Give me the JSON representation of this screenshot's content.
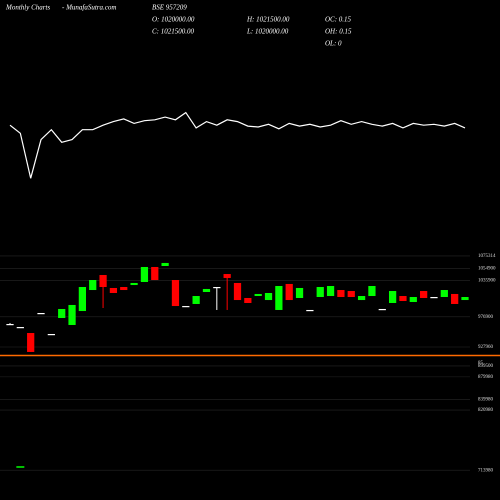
{
  "header": {
    "title": "Monthly Charts",
    "site": "- MunafaSutra.com",
    "symbol": "BSE 957209",
    "ohlc": [
      "O: 1020000.00",
      "H: 1021500.00",
      "OC: 0.15",
      "C: 1021500.00",
      "L: 1020000.00",
      "OH: 0.15",
      "OL: 0"
    ]
  },
  "chart_data": [
    {
      "type": "line",
      "color": "#ffffff",
      "ylim": [
        0,
        100
      ],
      "values": [
        72,
        63,
        13,
        56,
        67,
        53,
        56,
        67,
        67,
        72,
        76,
        79,
        74,
        77,
        78,
        81,
        78,
        86,
        69,
        76,
        72,
        78,
        76,
        71,
        70,
        73,
        68,
        74,
        71,
        73,
        70,
        72,
        77,
        73,
        76,
        73,
        71,
        74,
        69,
        74,
        72,
        73,
        71,
        74,
        69
      ]
    },
    {
      "type": "candlestick",
      "up_color": "#00ff00",
      "down_color": "#ff0000",
      "flat_color": "#ffffff",
      "grid": true,
      "ylim": [
        915000,
        1085000
      ],
      "yticks": [
        1075314,
        1054900,
        1035900,
        976900,
        927960
      ],
      "open": [
        965200,
        960300,
        950600,
        983000,
        949000,
        974900,
        963600,
        986200,
        1020200,
        1044500,
        1023500,
        1025100,
        1028300,
        1033200,
        1057500,
        1059100,
        1036400,
        994300,
        997600,
        1017000,
        1025100,
        1046100,
        1031600,
        1007300,
        1010500,
        1004000,
        987900,
        1030000,
        1007300,
        987900,
        1008900,
        1010500,
        1020200,
        1018600,
        1004000,
        1010500,
        989500,
        999200,
        1010500,
        1000800,
        1018600,
        1008900,
        1008900,
        1013800,
        1004000
      ],
      "high": [
        966800,
        960300,
        950600,
        983000,
        949000,
        989500,
        996000,
        1025100,
        1036400,
        1044500,
        1023500,
        1025100,
        1031600,
        1057500,
        1057500,
        1064000,
        1036400,
        994300,
        1010500,
        1021900,
        1025100,
        1046100,
        1031600,
        1007300,
        1013800,
        1015400,
        1026700,
        1030000,
        1023500,
        987900,
        1025100,
        1026700,
        1020200,
        1018600,
        1010500,
        1026700,
        989500,
        1018600,
        1010500,
        1008900,
        1018600,
        1008900,
        1020200,
        1013800,
        1008900
      ],
      "low": [
        963600,
        960300,
        919900,
        983000,
        949000,
        974900,
        963600,
        986200,
        1020200,
        991100,
        1015400,
        1020200,
        1028300,
        1033200,
        1036400,
        1059100,
        994300,
        994300,
        997600,
        1017000,
        987900,
        987900,
        1004000,
        999200,
        1010500,
        1004000,
        987900,
        1004000,
        1007300,
        987900,
        1008900,
        1010500,
        1008900,
        1008900,
        1004000,
        1010500,
        989500,
        999200,
        1002400,
        1000800,
        1007300,
        1008900,
        1008900,
        997600,
        1004000
      ],
      "close": [
        965200,
        960300,
        919900,
        983000,
        949000,
        989500,
        996000,
        1025100,
        1036400,
        1025100,
        1015400,
        1020200,
        1031600,
        1057500,
        1036400,
        1064000,
        994300,
        994300,
        1010500,
        1021900,
        1025100,
        1039700,
        1004000,
        999200,
        1013800,
        1015400,
        1026700,
        1004000,
        1023500,
        987900,
        1025100,
        1026700,
        1008900,
        1008900,
        1010500,
        1026700,
        989500,
        1018600,
        1002400,
        1008900,
        1007300,
        1008900,
        1020200,
        997600,
        1008900
      ]
    },
    {
      "type": "tick",
      "label": "85",
      "color": "#00ff00",
      "grid": true,
      "ylim": [
        700000,
        910000
      ],
      "yticks": [
        899500,
        879980,
        839980,
        820980,
        713980
      ],
      "values": [
        null,
        719600,
        null,
        null,
        null,
        null,
        null,
        null,
        null,
        null,
        null,
        null,
        null,
        null,
        null,
        null,
        null,
        null,
        null,
        null,
        null,
        null,
        null,
        null,
        null,
        null,
        null,
        null,
        null,
        null,
        null,
        null,
        null,
        null,
        null,
        null,
        null,
        null,
        null,
        null,
        null,
        null,
        null,
        null,
        null
      ]
    }
  ]
}
